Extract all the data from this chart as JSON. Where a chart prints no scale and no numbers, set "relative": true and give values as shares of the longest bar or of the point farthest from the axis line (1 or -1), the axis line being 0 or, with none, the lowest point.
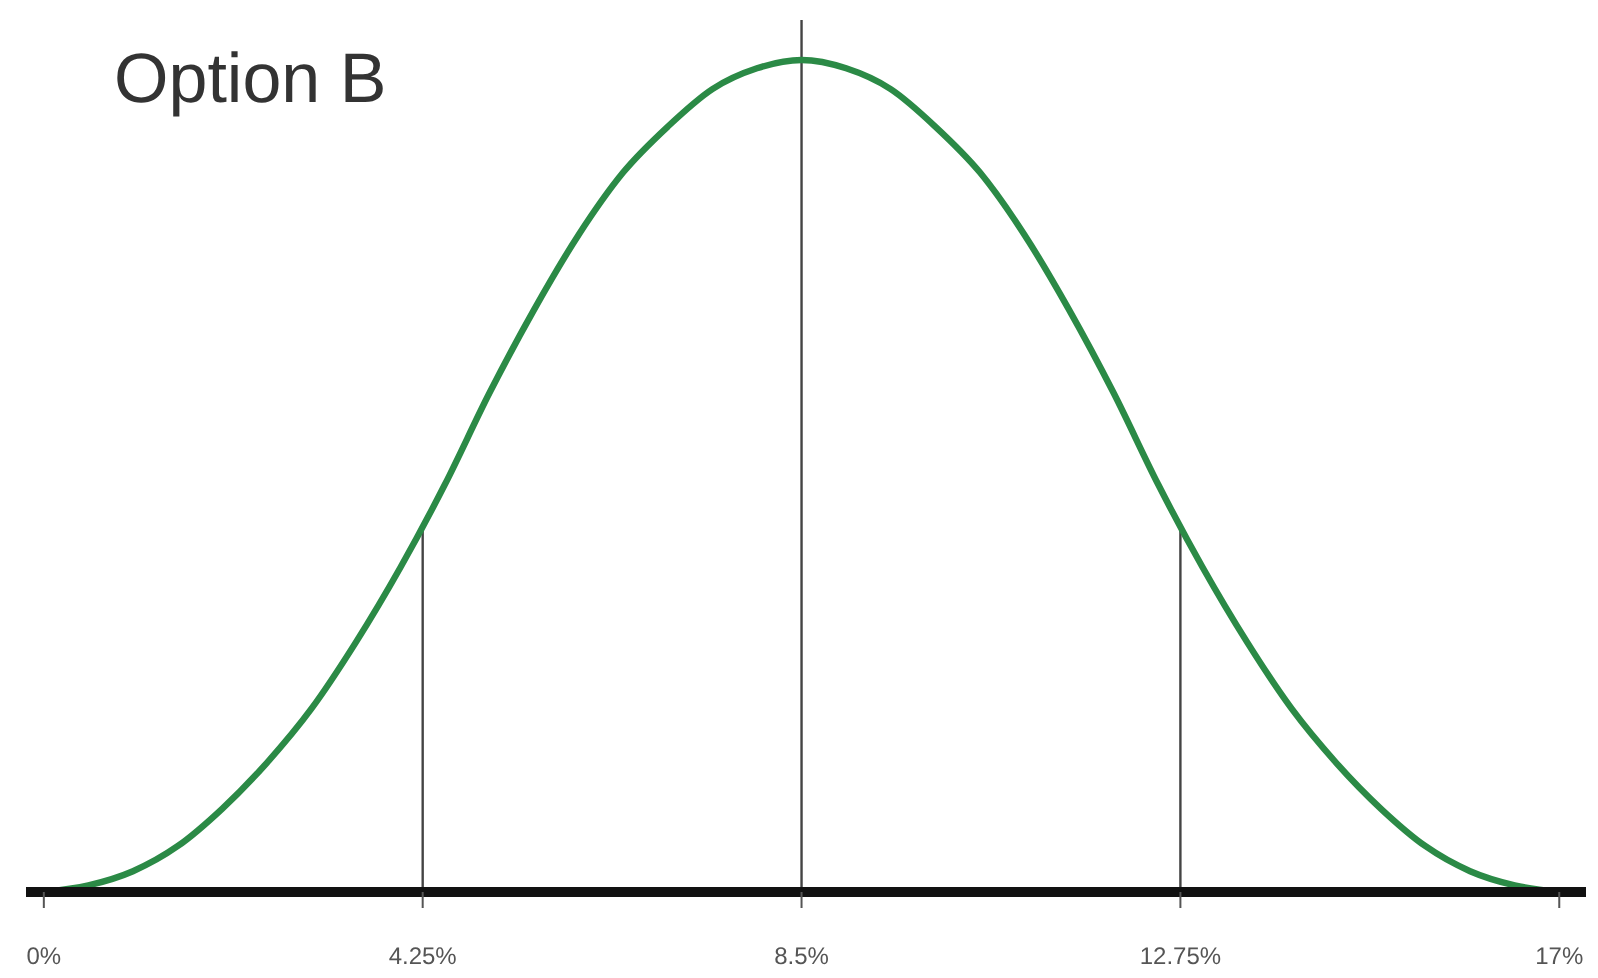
{
  "chart_data": {
    "type": "line",
    "title": "Option B",
    "relative": true,
    "x": [
      0,
      0.5,
      1,
      1.5,
      2,
      2.5,
      3,
      3.5,
      4,
      4.5,
      5,
      5.5,
      6,
      6.5,
      7,
      7.5,
      8,
      8.5,
      9,
      9.5,
      10,
      10.5,
      11,
      11.5,
      12,
      12.5,
      13,
      13.5,
      14,
      14.5,
      15,
      15.5,
      16,
      16.5,
      17
    ],
    "series": [
      {
        "color": "#2b8a46",
        "values": [
          0,
          0.008,
          0.025,
          0.055,
          0.1,
          0.155,
          0.22,
          0.3,
          0.39,
          0.49,
          0.6,
          0.7,
          0.79,
          0.865,
          0.92,
          0.965,
          0.99,
          1,
          0.99,
          0.965,
          0.92,
          0.865,
          0.79,
          0.7,
          0.6,
          0.49,
          0.39,
          0.3,
          0.22,
          0.155,
          0.1,
          0.055,
          0.025,
          0.008,
          0
        ]
      }
    ],
    "xlim": [
      -0.2,
      17.3
    ],
    "xticks": [
      {
        "value": 0,
        "label": "0%"
      },
      {
        "value": 4.25,
        "label": "4.25%"
      },
      {
        "value": 8.5,
        "label": "8.5%"
      },
      {
        "value": 12.75,
        "label": "12.75%"
      },
      {
        "value": 17,
        "label": "17%"
      }
    ],
    "ref_lines": [
      {
        "axis": "x",
        "value": 4.25,
        "color": "#444444"
      },
      {
        "axis": "x",
        "value": 8.5,
        "color": "#444444"
      },
      {
        "axis": "x",
        "value": 12.75,
        "color": "#444444"
      }
    ]
  }
}
